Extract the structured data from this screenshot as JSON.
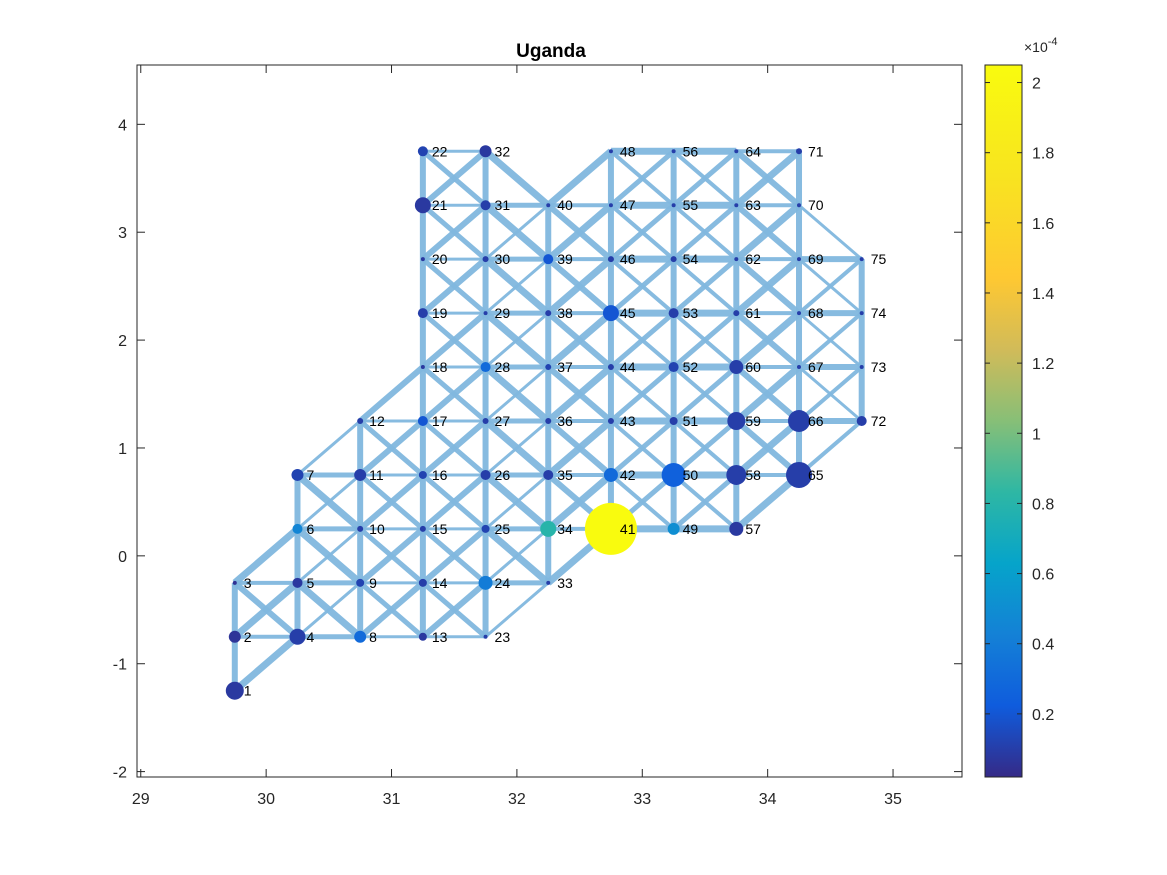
{
  "chart_data": {
    "type": "scatter",
    "title": "Uganda",
    "xlabel": "",
    "ylabel": "",
    "xlim": [
      28.97,
      35.55
    ],
    "ylim": [
      -2.05,
      4.55
    ],
    "xticks": [
      29,
      30,
      31,
      32,
      33,
      34,
      35
    ],
    "yticks": [
      -2,
      -1,
      0,
      1,
      2,
      3,
      4
    ],
    "grid": false,
    "colorbar": {
      "ticks": [
        0.2,
        0.4,
        0.6,
        0.8,
        1,
        1.2,
        1.4,
        1.6,
        1.8,
        2
      ],
      "multiplier": "×10",
      "exponent": "-4",
      "min": 0.02,
      "max": 2.05
    },
    "nodes": [
      {
        "id": 1,
        "x": 29.75,
        "y": -1.25,
        "v": 0.08,
        "s": 9
      },
      {
        "id": 2,
        "x": 29.75,
        "y": -0.75,
        "v": 0.06,
        "s": 6
      },
      {
        "id": 3,
        "x": 29.75,
        "y": -0.25,
        "v": 0.05,
        "s": 2
      },
      {
        "id": 4,
        "x": 30.25,
        "y": -0.75,
        "v": 0.1,
        "s": 8
      },
      {
        "id": 5,
        "x": 30.25,
        "y": -0.25,
        "v": 0.08,
        "s": 5
      },
      {
        "id": 6,
        "x": 30.25,
        "y": 0.25,
        "v": 0.45,
        "s": 5
      },
      {
        "id": 7,
        "x": 30.25,
        "y": 0.75,
        "v": 0.12,
        "s": 6
      },
      {
        "id": 8,
        "x": 30.75,
        "y": -0.75,
        "v": 0.3,
        "s": 6
      },
      {
        "id": 9,
        "x": 30.75,
        "y": -0.25,
        "v": 0.12,
        "s": 4
      },
      {
        "id": 10,
        "x": 30.75,
        "y": 0.25,
        "v": 0.1,
        "s": 3
      },
      {
        "id": 11,
        "x": 30.75,
        "y": 0.75,
        "v": 0.1,
        "s": 6
      },
      {
        "id": 12,
        "x": 30.75,
        "y": 1.25,
        "v": 0.1,
        "s": 3
      },
      {
        "id": 13,
        "x": 31.25,
        "y": -0.75,
        "v": 0.08,
        "s": 4
      },
      {
        "id": 14,
        "x": 31.25,
        "y": -0.25,
        "v": 0.1,
        "s": 4
      },
      {
        "id": 15,
        "x": 31.25,
        "y": 0.25,
        "v": 0.1,
        "s": 3
      },
      {
        "id": 16,
        "x": 31.25,
        "y": 0.75,
        "v": 0.12,
        "s": 4
      },
      {
        "id": 17,
        "x": 31.25,
        "y": 1.25,
        "v": 0.2,
        "s": 5
      },
      {
        "id": 18,
        "x": 31.25,
        "y": 1.75,
        "v": 0.08,
        "s": 2
      },
      {
        "id": 19,
        "x": 31.25,
        "y": 2.25,
        "v": 0.1,
        "s": 5
      },
      {
        "id": 20,
        "x": 31.25,
        "y": 2.75,
        "v": 0.08,
        "s": 2
      },
      {
        "id": 21,
        "x": 31.25,
        "y": 3.25,
        "v": 0.08,
        "s": 8
      },
      {
        "id": 22,
        "x": 31.25,
        "y": 3.75,
        "v": 0.12,
        "s": 5
      },
      {
        "id": 23,
        "x": 31.75,
        "y": -0.75,
        "v": 0.1,
        "s": 2
      },
      {
        "id": 24,
        "x": 31.75,
        "y": -0.25,
        "v": 0.4,
        "s": 7
      },
      {
        "id": 25,
        "x": 31.75,
        "y": 0.25,
        "v": 0.12,
        "s": 4
      },
      {
        "id": 26,
        "x": 31.75,
        "y": 0.75,
        "v": 0.1,
        "s": 5
      },
      {
        "id": 27,
        "x": 31.75,
        "y": 1.25,
        "v": 0.1,
        "s": 3
      },
      {
        "id": 28,
        "x": 31.75,
        "y": 1.75,
        "v": 0.3,
        "s": 5
      },
      {
        "id": 29,
        "x": 31.75,
        "y": 2.25,
        "v": 0.1,
        "s": 2
      },
      {
        "id": 30,
        "x": 31.75,
        "y": 2.75,
        "v": 0.1,
        "s": 3
      },
      {
        "id": 31,
        "x": 31.75,
        "y": 3.25,
        "v": 0.1,
        "s": 5
      },
      {
        "id": 32,
        "x": 31.75,
        "y": 3.75,
        "v": 0.08,
        "s": 6
      },
      {
        "id": 33,
        "x": 32.25,
        "y": -0.25,
        "v": 0.1,
        "s": 2
      },
      {
        "id": 34,
        "x": 32.25,
        "y": 0.25,
        "v": 0.8,
        "s": 8
      },
      {
        "id": 35,
        "x": 32.25,
        "y": 0.75,
        "v": 0.1,
        "s": 5
      },
      {
        "id": 36,
        "x": 32.25,
        "y": 1.25,
        "v": 0.1,
        "s": 3
      },
      {
        "id": 37,
        "x": 32.25,
        "y": 1.75,
        "v": 0.12,
        "s": 3
      },
      {
        "id": 38,
        "x": 32.25,
        "y": 2.25,
        "v": 0.1,
        "s": 3
      },
      {
        "id": 39,
        "x": 32.25,
        "y": 2.75,
        "v": 0.2,
        "s": 5
      },
      {
        "id": 40,
        "x": 32.25,
        "y": 3.25,
        "v": 0.1,
        "s": 2
      },
      {
        "id": 41,
        "x": 32.75,
        "y": 0.25,
        "v": 2.05,
        "s": 26
      },
      {
        "id": 42,
        "x": 32.75,
        "y": 0.75,
        "v": 0.3,
        "s": 7
      },
      {
        "id": 43,
        "x": 32.75,
        "y": 1.25,
        "v": 0.1,
        "s": 3
      },
      {
        "id": 44,
        "x": 32.75,
        "y": 1.75,
        "v": 0.1,
        "s": 3
      },
      {
        "id": 45,
        "x": 32.75,
        "y": 2.25,
        "v": 0.2,
        "s": 8
      },
      {
        "id": 46,
        "x": 32.75,
        "y": 2.75,
        "v": 0.1,
        "s": 3
      },
      {
        "id": 47,
        "x": 32.75,
        "y": 3.25,
        "v": 0.1,
        "s": 2
      },
      {
        "id": 48,
        "x": 32.75,
        "y": 3.75,
        "v": 0.1,
        "s": 2
      },
      {
        "id": 49,
        "x": 33.25,
        "y": 0.25,
        "v": 0.5,
        "s": 6
      },
      {
        "id": 50,
        "x": 33.25,
        "y": 0.75,
        "v": 0.25,
        "s": 12
      },
      {
        "id": 51,
        "x": 33.25,
        "y": 1.25,
        "v": 0.1,
        "s": 4
      },
      {
        "id": 52,
        "x": 33.25,
        "y": 1.75,
        "v": 0.12,
        "s": 5
      },
      {
        "id": 53,
        "x": 33.25,
        "y": 2.25,
        "v": 0.1,
        "s": 5
      },
      {
        "id": 54,
        "x": 33.25,
        "y": 2.75,
        "v": 0.1,
        "s": 3
      },
      {
        "id": 55,
        "x": 33.25,
        "y": 3.25,
        "v": 0.1,
        "s": 2
      },
      {
        "id": 56,
        "x": 33.25,
        "y": 3.75,
        "v": 0.1,
        "s": 2
      },
      {
        "id": 57,
        "x": 33.75,
        "y": 0.25,
        "v": 0.08,
        "s": 7
      },
      {
        "id": 58,
        "x": 33.75,
        "y": 0.75,
        "v": 0.1,
        "s": 10
      },
      {
        "id": 59,
        "x": 33.75,
        "y": 1.25,
        "v": 0.1,
        "s": 9
      },
      {
        "id": 60,
        "x": 33.75,
        "y": 1.75,
        "v": 0.1,
        "s": 7
      },
      {
        "id": 61,
        "x": 33.75,
        "y": 2.25,
        "v": 0.1,
        "s": 3
      },
      {
        "id": 62,
        "x": 33.75,
        "y": 2.75,
        "v": 0.1,
        "s": 2
      },
      {
        "id": 63,
        "x": 33.75,
        "y": 3.25,
        "v": 0.1,
        "s": 2
      },
      {
        "id": 64,
        "x": 33.75,
        "y": 3.75,
        "v": 0.1,
        "s": 2
      },
      {
        "id": 65,
        "x": 34.25,
        "y": 0.75,
        "v": 0.1,
        "s": 13
      },
      {
        "id": 66,
        "x": 34.25,
        "y": 1.25,
        "v": 0.1,
        "s": 11
      },
      {
        "id": 67,
        "x": 34.25,
        "y": 1.75,
        "v": 0.1,
        "s": 2
      },
      {
        "id": 68,
        "x": 34.25,
        "y": 2.25,
        "v": 0.1,
        "s": 2
      },
      {
        "id": 69,
        "x": 34.25,
        "y": 2.75,
        "v": 0.1,
        "s": 2
      },
      {
        "id": 70,
        "x": 34.25,
        "y": 3.25,
        "v": 0.1,
        "s": 2
      },
      {
        "id": 71,
        "x": 34.25,
        "y": 3.75,
        "v": 0.1,
        "s": 3
      },
      {
        "id": 72,
        "x": 34.75,
        "y": 1.25,
        "v": 0.1,
        "s": 5
      },
      {
        "id": 73,
        "x": 34.75,
        "y": 1.75,
        "v": 0.1,
        "s": 2
      },
      {
        "id": 74,
        "x": 34.75,
        "y": 2.25,
        "v": 0.1,
        "s": 2
      },
      {
        "id": 75,
        "x": 34.75,
        "y": 2.75,
        "v": 0.1,
        "s": 2
      }
    ],
    "edge_color": "#81b8df",
    "frame_color": "#262626"
  }
}
